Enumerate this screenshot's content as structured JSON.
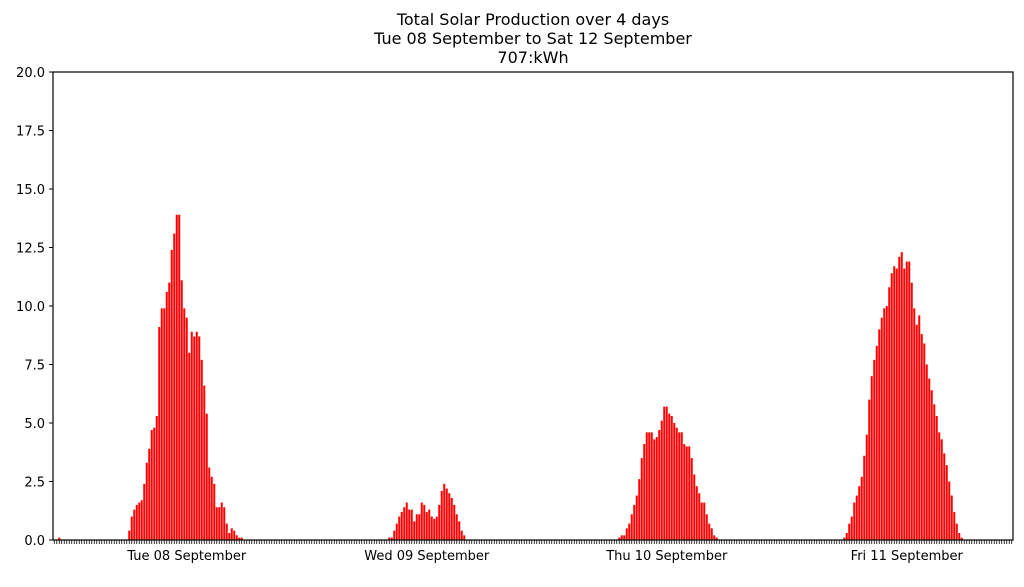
{
  "chart_data": {
    "type": "bar",
    "title": [
      "Total Solar Production over 4 days",
      "Tue 08 September to Sat 12 September",
      "707:kWh"
    ],
    "xlabel": "",
    "ylabel": "",
    "ylim": [
      0,
      20
    ],
    "yticks": [
      "0.0",
      "2.5",
      "5.0",
      "7.5",
      "10.0",
      "12.5",
      "15.0",
      "17.5",
      "20.0"
    ],
    "xticklabels": [
      {
        "index": 53,
        "label": "Tue 08 September"
      },
      {
        "index": 149,
        "label": "Wed 09 September"
      },
      {
        "index": 245,
        "label": "Thu 10 September"
      },
      {
        "index": 341,
        "label": "Fri 11 September"
      }
    ],
    "grid": false,
    "bar_color": "#ff0000",
    "values": [
      0,
      0,
      0.1,
      0,
      0,
      0,
      0,
      0,
      0,
      0,
      0,
      0,
      0,
      0,
      0,
      0,
      0,
      0,
      0,
      0,
      0,
      0,
      0,
      0,
      0,
      0,
      0,
      0,
      0,
      0,
      0.4,
      1.0,
      1.3,
      1.5,
      1.6,
      1.7,
      2.4,
      3.3,
      3.9,
      4.7,
      4.8,
      5.3,
      9.1,
      9.9,
      9.9,
      10.6,
      11.0,
      12.4,
      13.1,
      13.9,
      13.9,
      11.1,
      9.9,
      9.5,
      8.0,
      8.9,
      8.7,
      8.9,
      8.7,
      7.7,
      6.6,
      5.4,
      3.1,
      2.7,
      2.4,
      1.4,
      1.4,
      1.6,
      1.4,
      0.7,
      0.3,
      0.5,
      0.4,
      0.2,
      0.1,
      0.1,
      0,
      0,
      0,
      0,
      0,
      0,
      0,
      0,
      0,
      0,
      0,
      0,
      0,
      0,
      0,
      0,
      0,
      0,
      0,
      0,
      0,
      0,
      0,
      0,
      0,
      0,
      0,
      0,
      0,
      0,
      0,
      0,
      0,
      0,
      0,
      0,
      0,
      0,
      0,
      0,
      0,
      0,
      0,
      0,
      0,
      0,
      0,
      0,
      0,
      0,
      0,
      0,
      0,
      0,
      0,
      0,
      0,
      0,
      0.1,
      0.1,
      0.4,
      0.7,
      1.0,
      1.2,
      1.4,
      1.6,
      1.3,
      1.3,
      0.8,
      1.1,
      1.1,
      1.6,
      1.5,
      1.2,
      1.3,
      1.0,
      0.9,
      1.0,
      1.5,
      2.1,
      2.4,
      2.2,
      2.0,
      1.8,
      1.5,
      1.1,
      0.8,
      0.4,
      0.2,
      0,
      0,
      0,
      0,
      0,
      0,
      0,
      0,
      0,
      0,
      0,
      0,
      0,
      0,
      0,
      0,
      0,
      0,
      0,
      0,
      0,
      0,
      0,
      0,
      0,
      0,
      0,
      0,
      0,
      0,
      0,
      0,
      0,
      0,
      0,
      0,
      0,
      0,
      0,
      0,
      0,
      0,
      0,
      0,
      0,
      0,
      0,
      0,
      0,
      0,
      0,
      0,
      0,
      0,
      0,
      0,
      0,
      0,
      0,
      0,
      0,
      0.1,
      0.2,
      0.2,
      0.5,
      0.7,
      1.1,
      1.5,
      1.9,
      2.6,
      3.5,
      4.1,
      4.6,
      4.6,
      4.6,
      4.3,
      4.4,
      4.7,
      5.1,
      5.7,
      5.7,
      5.4,
      5.3,
      5.0,
      4.8,
      4.6,
      4.6,
      4.1,
      4.0,
      4.0,
      3.5,
      2.8,
      2.3,
      2.0,
      1.6,
      1.6,
      1.1,
      0.7,
      0.5,
      0.2,
      0.1,
      0,
      0,
      0,
      0,
      0,
      0,
      0,
      0,
      0,
      0,
      0,
      0,
      0,
      0,
      0,
      0,
      0,
      0,
      0,
      0,
      0,
      0,
      0,
      0,
      0,
      0,
      0,
      0,
      0,
      0,
      0,
      0,
      0,
      0,
      0,
      0,
      0,
      0,
      0,
      0,
      0,
      0,
      0,
      0,
      0,
      0,
      0,
      0,
      0,
      0,
      0.1,
      0.3,
      0.7,
      1.0,
      1.6,
      1.9,
      2.3,
      2.7,
      3.6,
      4.5,
      6.0,
      7.0,
      7.7,
      8.3,
      9.0,
      9.5,
      9.9,
      10.0,
      10.8,
      11.4,
      11.7,
      11.6,
      12.1,
      12.3,
      11.6,
      11.9,
      11.9,
      11.0,
      9.9,
      9.2,
      9.6,
      8.8,
      8.4,
      7.5,
      6.9,
      6.4,
      5.8,
      5.3,
      4.6,
      4.3,
      3.7,
      3.2,
      2.5,
      1.9,
      1.2,
      0.7,
      0.3,
      0.1,
      0,
      0,
      0,
      0,
      0,
      0,
      0,
      0,
      0,
      0,
      0,
      0,
      0,
      0,
      0,
      0,
      0,
      0,
      0,
      0
    ]
  }
}
